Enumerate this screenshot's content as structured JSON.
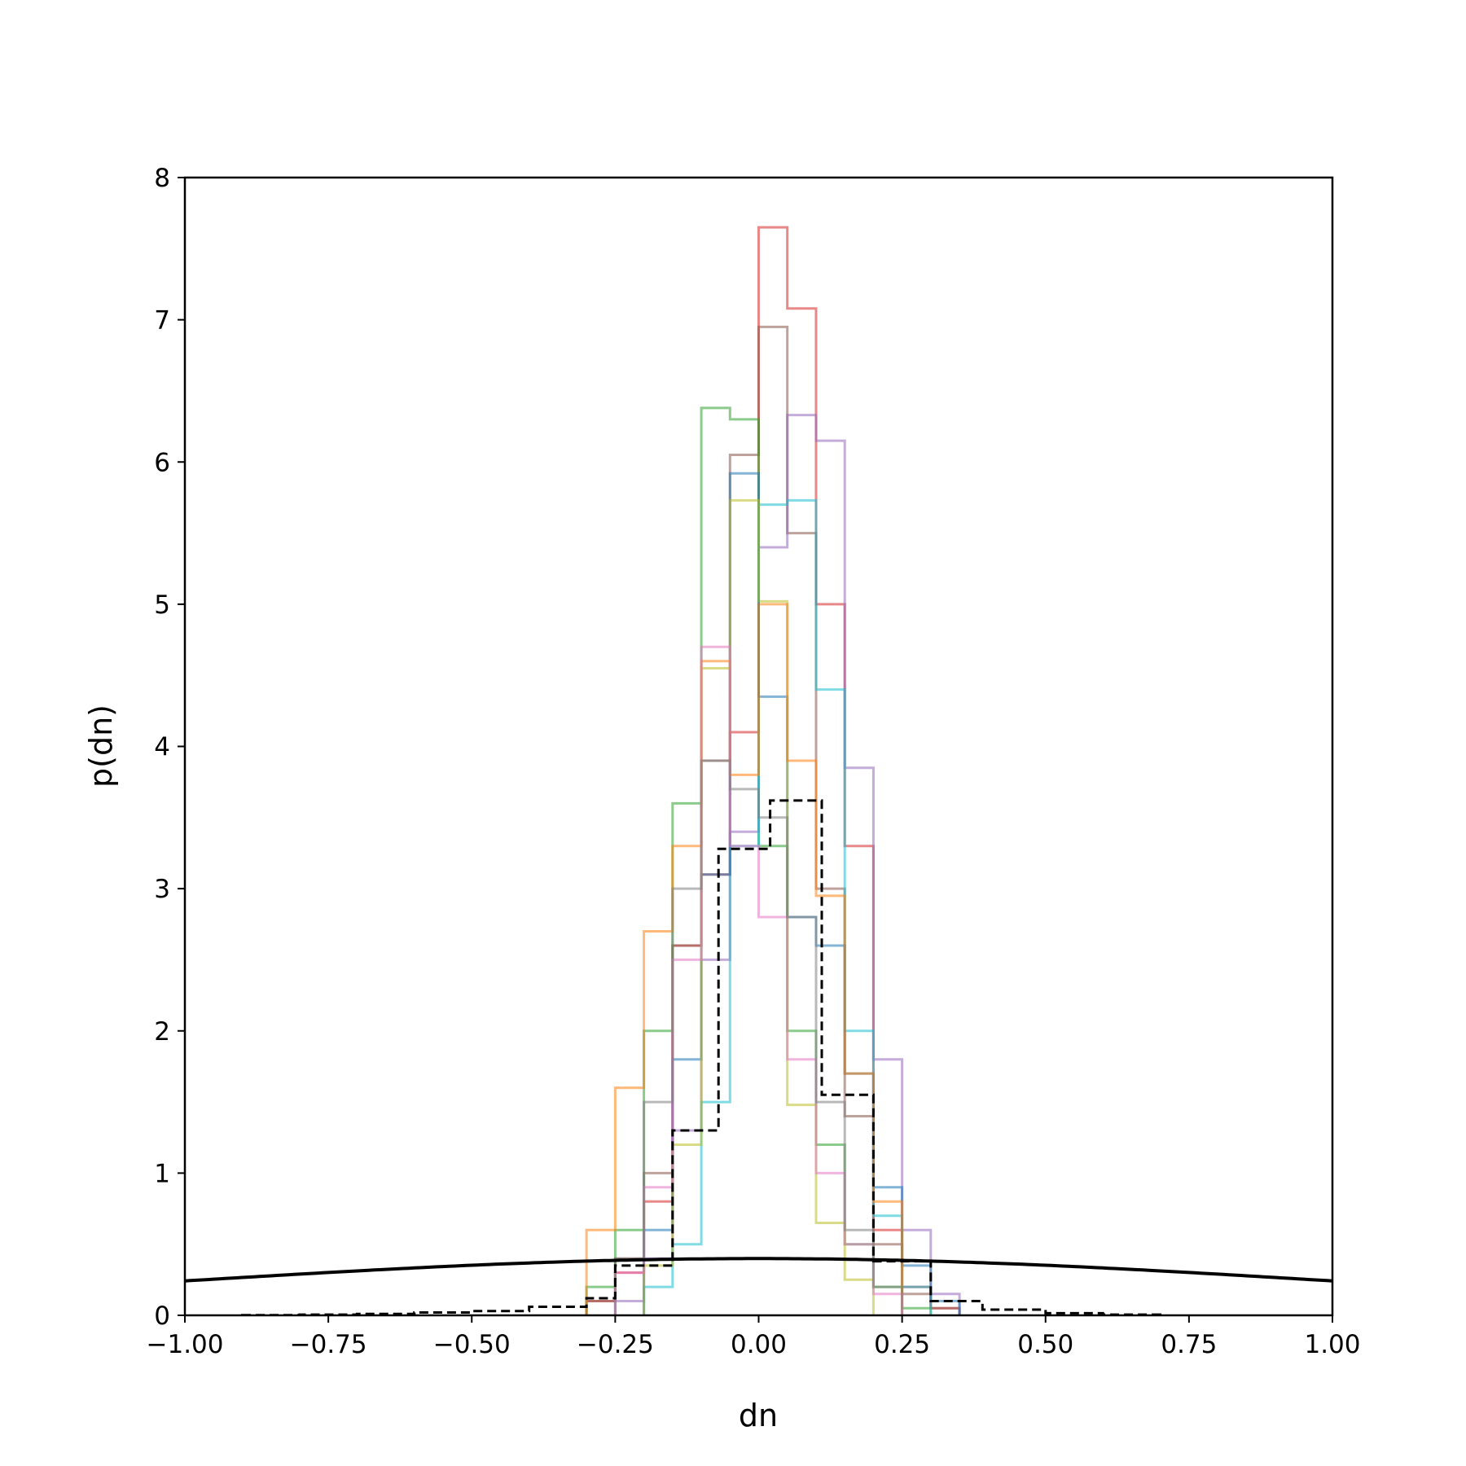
{
  "chart_data": {
    "type": "line",
    "subtype": "step-histogram",
    "title": "",
    "xlabel": "dn",
    "ylabel": "p(dn)",
    "xlim": [
      -1.0,
      1.0
    ],
    "ylim": [
      0,
      8
    ],
    "xticks": [
      -1.0,
      -0.75,
      -0.5,
      -0.25,
      0.0,
      0.25,
      0.5,
      0.75,
      1.0
    ],
    "xtick_labels": [
      "−1.00",
      "−0.75",
      "−0.50",
      "−0.25",
      "0.00",
      "0.25",
      "0.50",
      "0.75",
      "1.00"
    ],
    "yticks": [
      0,
      1,
      2,
      3,
      4,
      5,
      6,
      7,
      8
    ],
    "ytick_labels": [
      "0",
      "1",
      "2",
      "3",
      "4",
      "5",
      "6",
      "7",
      "8"
    ],
    "grid": false,
    "legend": "none",
    "series": [
      {
        "color": "#d62728",
        "opacity": 0.55,
        "bin_edges": [
          -0.3,
          -0.25,
          -0.2,
          -0.15,
          -0.1,
          -0.05,
          0.0,
          0.05,
          0.1,
          0.15,
          0.2,
          0.25,
          0.3,
          0.35
        ],
        "values": [
          0.1,
          0.3,
          0.8,
          2.6,
          3.1,
          4.1,
          7.65,
          7.08,
          5.0,
          3.3,
          0.6,
          0.2,
          0.05
        ]
      },
      {
        "color": "#8c564b",
        "opacity": 0.55,
        "bin_edges": [
          -0.3,
          -0.25,
          -0.2,
          -0.15,
          -0.1,
          -0.05,
          0.0,
          0.05,
          0.1,
          0.15,
          0.2,
          0.25,
          0.3,
          0.35
        ],
        "values": [
          0.1,
          0.4,
          1.0,
          2.6,
          3.9,
          6.05,
          6.95,
          5.5,
          3.0,
          1.4,
          0.5,
          0.15,
          0.05
        ]
      },
      {
        "color": "#2ca02c",
        "opacity": 0.55,
        "bin_edges": [
          -0.3,
          -0.25,
          -0.2,
          -0.15,
          -0.1,
          -0.05,
          0.0,
          0.05,
          0.1,
          0.15,
          0.2,
          0.25,
          0.3
        ],
        "values": [
          0.2,
          0.6,
          2.0,
          3.6,
          6.38,
          6.3,
          3.3,
          2.0,
          1.2,
          0.5,
          0.2,
          0.05
        ]
      },
      {
        "color": "#9467bd",
        "opacity": 0.55,
        "bin_edges": [
          -0.25,
          -0.2,
          -0.15,
          -0.1,
          -0.05,
          0.0,
          0.05,
          0.1,
          0.15,
          0.2,
          0.25,
          0.3,
          0.35
        ],
        "values": [
          0.1,
          0.4,
          1.3,
          2.5,
          3.4,
          5.4,
          6.33,
          6.15,
          3.85,
          1.8,
          0.6,
          0.15
        ]
      },
      {
        "color": "#17becf",
        "opacity": 0.55,
        "bin_edges": [
          -0.2,
          -0.15,
          -0.1,
          -0.05,
          0.0,
          0.05,
          0.1,
          0.15,
          0.2,
          0.25,
          0.3
        ],
        "values": [
          0.2,
          0.5,
          1.5,
          3.3,
          5.7,
          5.73,
          4.4,
          2.0,
          0.7,
          0.2
        ]
      },
      {
        "color": "#1f77b4",
        "opacity": 0.55,
        "bin_edges": [
          -0.2,
          -0.15,
          -0.1,
          -0.05,
          0.0,
          0.05,
          0.1,
          0.15,
          0.2,
          0.25,
          0.3,
          0.35
        ],
        "values": [
          0.6,
          1.8,
          3.1,
          5.92,
          4.35,
          2.8,
          2.6,
          1.7,
          0.9,
          0.35,
          0.1
        ]
      },
      {
        "color": "#bcbd22",
        "opacity": 0.55,
        "bin_edges": [
          -0.2,
          -0.15,
          -0.1,
          -0.05,
          0.0,
          0.05,
          0.1,
          0.15,
          0.2
        ],
        "values": [
          0.35,
          1.2,
          4.55,
          5.73,
          5.02,
          1.48,
          0.65,
          0.25
        ]
      },
      {
        "color": "#ff7f0e",
        "opacity": 0.55,
        "bin_edges": [
          -0.3,
          -0.25,
          -0.2,
          -0.15,
          -0.1,
          -0.05,
          0.0,
          0.05,
          0.1,
          0.15,
          0.2,
          0.25
        ],
        "values": [
          0.6,
          1.6,
          2.7,
          3.3,
          4.6,
          3.8,
          5.0,
          3.9,
          2.95,
          1.7,
          0.8
        ]
      },
      {
        "color": "#e377c2",
        "opacity": 0.55,
        "bin_edges": [
          -0.25,
          -0.2,
          -0.15,
          -0.1,
          -0.05,
          0.0,
          0.05,
          0.1,
          0.15,
          0.2,
          0.25
        ],
        "values": [
          0.3,
          0.9,
          2.5,
          4.7,
          3.3,
          2.8,
          1.8,
          1.0,
          0.5,
          0.15
        ]
      },
      {
        "color": "#7f7f7f",
        "opacity": 0.55,
        "bin_edges": [
          -0.25,
          -0.2,
          -0.15,
          -0.1,
          -0.05,
          0.0,
          0.05,
          0.1,
          0.15,
          0.2,
          0.25
        ],
        "values": [
          0.4,
          1.5,
          3.0,
          3.9,
          3.7,
          3.5,
          2.8,
          1.5,
          0.6,
          0.2
        ]
      }
    ],
    "reference_histogram": {
      "style": "dashed",
      "color": "#000000",
      "bin_edges": [
        -0.9,
        -0.8,
        -0.7,
        -0.6,
        -0.5,
        -0.4,
        -0.3,
        -0.25,
        -0.15,
        -0.07,
        0.02,
        0.11,
        0.2,
        0.3,
        0.39,
        0.5,
        0.6,
        0.7
      ],
      "values": [
        0.002,
        0.005,
        0.01,
        0.02,
        0.03,
        0.06,
        0.12,
        0.35,
        1.3,
        3.28,
        3.62,
        1.55,
        0.38,
        0.1,
        0.04,
        0.015,
        0.005
      ]
    },
    "reference_curve": {
      "style": "solid",
      "color": "#000000",
      "description_of_shape": "normal density",
      "mean": 0.0,
      "sd": 1.0
    }
  }
}
